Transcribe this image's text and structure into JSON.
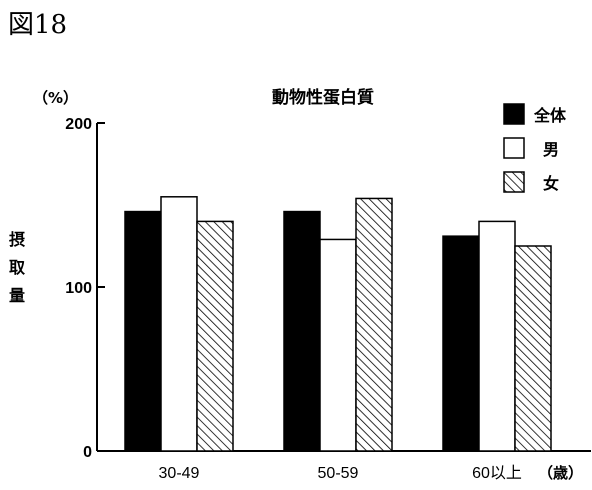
{
  "figure_label": "図18",
  "chart_data": {
    "type": "bar",
    "title": "動物性蛋白質",
    "unit": "（%）",
    "ylabel": "摂取量",
    "ylabel_chars": [
      "摂",
      "取",
      "量"
    ],
    "categories": [
      "30-49",
      "50-59",
      "60以上"
    ],
    "category_suffix": "（歳）",
    "yticks": [
      "200",
      "100",
      "0"
    ],
    "ylim": [
      0,
      200
    ],
    "grid": false,
    "legend_position": "top-right",
    "series": [
      {
        "name": "全体",
        "values": [
          146,
          146,
          131
        ],
        "fill": "#000000",
        "pattern": "solid"
      },
      {
        "name": "男",
        "values": [
          155,
          129,
          140
        ],
        "fill": "#ffffff",
        "pattern": "hollow"
      },
      {
        "name": "女",
        "values": [
          140,
          154,
          125
        ],
        "fill": "#ffffff",
        "pattern": "hatched"
      }
    ]
  }
}
